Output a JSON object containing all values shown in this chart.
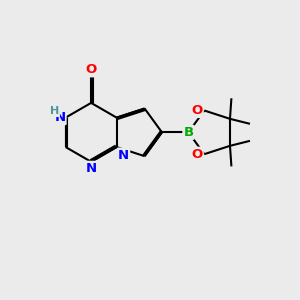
{
  "bg_color": "#ebebeb",
  "bond_color": "#000000",
  "bond_width": 1.5,
  "atom_colors": {
    "N": "#0000ff",
    "O": "#ff0000",
    "B": "#00aa00",
    "H": "#4a9a9a",
    "C": "#000000"
  },
  "font_size": 9.5,
  "bl": 1.0
}
